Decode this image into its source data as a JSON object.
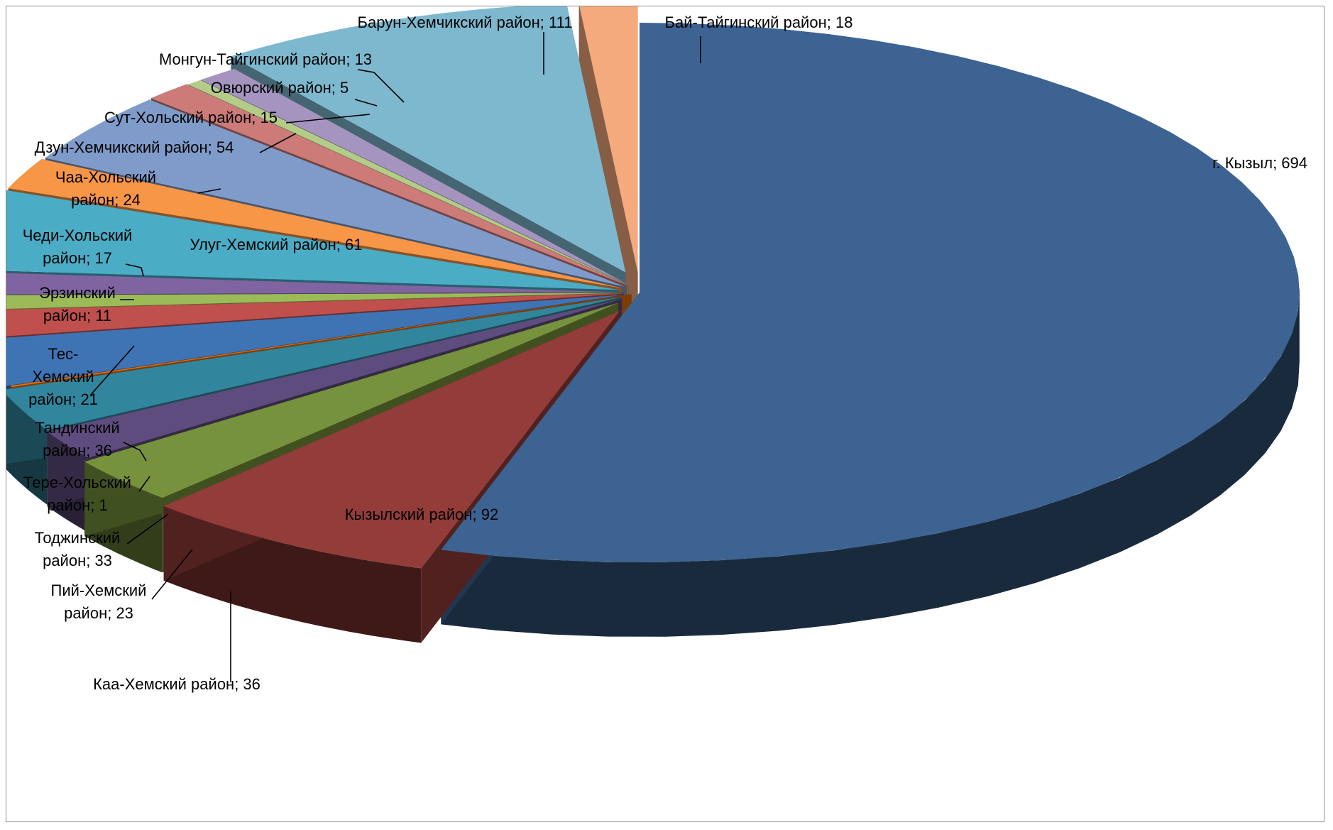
{
  "chart_data": {
    "type": "pie",
    "title": "",
    "categories": [
      "г. Кызыл",
      "Кызылский район",
      "Каа-Хемский район",
      "Пий-Хемский район",
      "Тоджинский район",
      "Тере-Хольский район",
      "Тандинский район",
      "Тес-Хемский район",
      "Эрзинский район",
      "Чеди-Хольский район",
      "Улуг-Хемский район",
      "Чаа-Хольский район",
      "Дзун-Хемчикский район",
      "Сут-Хольский район",
      "Овюрский район",
      "Монгун-Тайгинский район",
      "Барун-Хемчикский район",
      "Бай-Тайгинский район"
    ],
    "values": [
      694,
      92,
      36,
      23,
      33,
      1,
      36,
      21,
      11,
      17,
      61,
      24,
      54,
      15,
      5,
      13,
      111,
      18
    ],
    "colors": [
      "#3D6392",
      "#933C3A",
      "#76923C",
      "#5F4C7E",
      "#31859C",
      "#E46C0A",
      "#3E74B4",
      "#C0504D",
      "#9BBB59",
      "#8064A2",
      "#4BACC6",
      "#F79646",
      "#7F9BCA",
      "#CC7B79",
      "#B3CC87",
      "#A694C0",
      "#7DB8CF",
      "#F5AA7D"
    ],
    "data_labels": [
      "г. Кызыл; 694",
      "Кызылский район; 92",
      "Каа-Хемский район; 36",
      "Пий-Хемский район; 23",
      "Тоджинский район; 33",
      "Тере-Хольский район; 1",
      "Тандинский район; 36",
      "Тес-Хемский район; 21",
      "Эрзинский район; 11",
      "Чеди-Хольский район; 17",
      "Улуг-Хемский район; 61",
      "Чаа-Хольский район; 24",
      "Дзун-Хемчикский район; 54",
      "Сут-Хольский район; 15",
      "Овюрский район; 5",
      "Монгун-Тайгинский район; 13",
      "Барун-Хемчикский район; 111",
      "Бай-Тайгинский район; 18"
    ],
    "exploded": true,
    "three_d": true,
    "legend": "none"
  }
}
